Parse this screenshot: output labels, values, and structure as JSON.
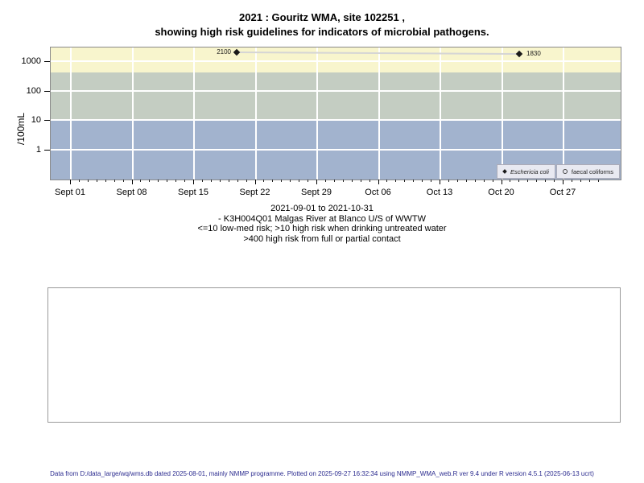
{
  "title": {
    "line1": "2021 : Gouritz WMA, site 102251 ,",
    "line2": "showing high risk guidelines for indicators of microbial pathogens."
  },
  "subtitle": {
    "line1": "2021-09-01 to 2021-10-31",
    "line2": "- K3H004Q01 Malgas River at Blanco U/S of WWTW",
    "line3": "<=10 low-med risk; >10 high risk when drinking untreated water",
    "line4": ">400 high risk from full or partial contact"
  },
  "legend": {
    "items": [
      {
        "label": "Eschericia coli",
        "marker": "filled-diamond"
      },
      {
        "label": "faecal coliforms",
        "marker": "open-circle"
      }
    ]
  },
  "footer": "Data from D:/data_large/wq/wms.db dated 2025-08-01, mainly NMMP programme. Plotted on 2025-09-27 16:32:34 using NMMP_WMA_web.R ver 9.4 under R version 4.5.1 (2025-06-13 ucrt)",
  "chart_data": {
    "type": "scatter",
    "title": "2021 : Gouritz WMA, site 102251 , showing high risk guidelines for indicators of microbial pathogens.",
    "ylabel": "/100mL",
    "xlabel": "",
    "y_scale": "log10",
    "y_tick_labels": [
      "1000",
      "100",
      "10",
      "1"
    ],
    "ylim_approx": [
      0.08,
      3000
    ],
    "x_range": [
      "2021-09-01",
      "2021-10-31"
    ],
    "x_tick_labels": [
      "Sept 01",
      "Sept 08",
      "Sept 15",
      "Sept 22",
      "Sept 29",
      "Oct 06",
      "Oct 13",
      "Oct 20",
      "Oct 27"
    ],
    "grid": "white major gridlines on colored risk bands",
    "legend_position": "bottom-right inside panel",
    "bands": [
      {
        "range": ">400",
        "meaning": "high risk from full or partial contact",
        "color": "#f8f5cd"
      },
      {
        "range": "10-400",
        "meaning": "high risk when drinking untreated water",
        "color": "#c4cdc2"
      },
      {
        "range": "<=10",
        "meaning": "low-med risk",
        "color": "#a2b3ce"
      }
    ],
    "series": [
      {
        "name": "Eschericia coli",
        "marker": "filled-diamond",
        "line_color": "#d5d5d5",
        "points": [
          {
            "date": "2021-09-20",
            "value": 2100
          },
          {
            "date": "2021-10-22",
            "value": 1830
          }
        ]
      },
      {
        "name": "faecal coliforms",
        "marker": "open-circle",
        "points": []
      }
    ]
  }
}
